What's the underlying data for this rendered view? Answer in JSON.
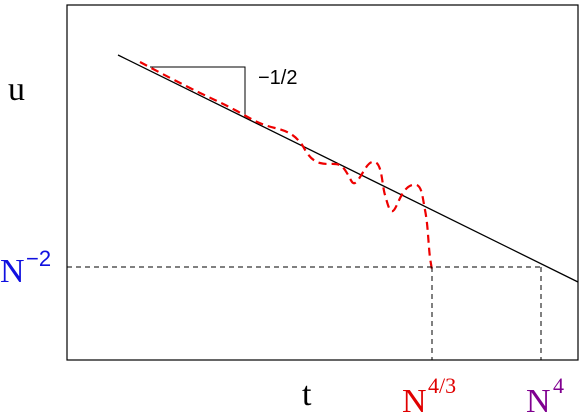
{
  "axes": {
    "y_label": "u",
    "x_label": "t"
  },
  "slope_label": "−1/2",
  "markers": [
    {
      "base": "N",
      "exponent": "−2"
    },
    {
      "base": "N",
      "exponent": "4/3"
    },
    {
      "base": "N",
      "exponent": "4"
    }
  ]
}
